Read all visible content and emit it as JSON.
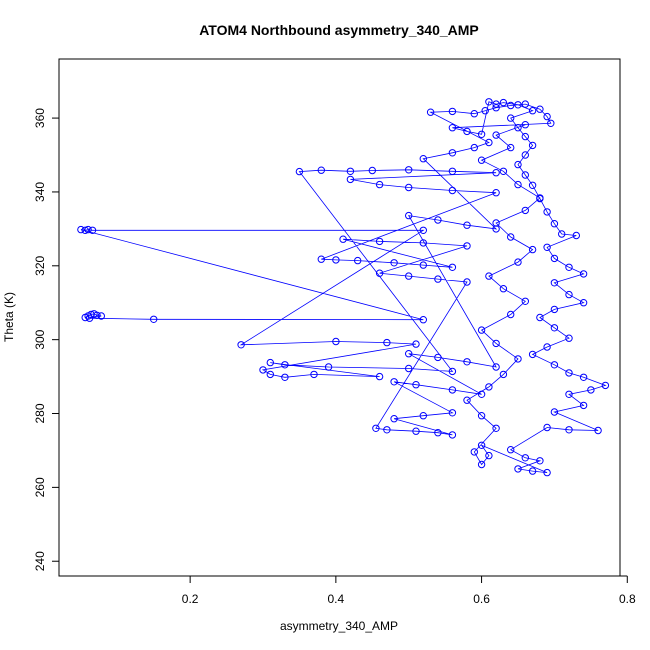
{
  "chart_data": {
    "type": "scatter",
    "title": "ATOM4 Northbound asymmetry_340_AMP",
    "xlabel": "asymmetry_340_AMP",
    "ylabel": "Theta (K)",
    "xlim": [
      0.02,
      0.79
    ],
    "ylim": [
      236,
      376
    ],
    "xticks": [
      0.2,
      0.4,
      0.6,
      0.8
    ],
    "yticks": [
      240,
      260,
      280,
      300,
      320,
      340,
      360
    ],
    "xtick_labels": [
      "0.2",
      "0.4",
      "0.6",
      "0.8"
    ],
    "ytick_labels": [
      "240",
      "260",
      "280",
      "300",
      "320",
      "340",
      "360"
    ],
    "color": "#0000ff",
    "marker": "open-circle",
    "connected": true,
    "series": [
      {
        "points": [
          [
            0.056,
            306.0
          ],
          [
            0.06,
            306.4
          ],
          [
            0.064,
            306.8
          ],
          [
            0.068,
            307.0
          ],
          [
            0.072,
            306.6
          ],
          [
            0.078,
            306.4
          ],
          [
            0.062,
            305.8
          ],
          [
            0.15,
            305.5
          ],
          [
            0.52,
            305.4
          ],
          [
            0.05,
            329.8
          ],
          [
            0.056,
            329.6
          ],
          [
            0.06,
            329.8
          ],
          [
            0.066,
            329.6
          ],
          [
            0.52,
            329.6
          ],
          [
            0.27,
            298.6
          ],
          [
            0.4,
            299.5
          ],
          [
            0.47,
            299.2
          ],
          [
            0.51,
            298.8
          ],
          [
            0.3,
            291.8
          ],
          [
            0.31,
            290.6
          ],
          [
            0.33,
            289.8
          ],
          [
            0.37,
            290.6
          ],
          [
            0.46,
            290.0
          ],
          [
            0.31,
            293.8
          ],
          [
            0.33,
            293.2
          ],
          [
            0.39,
            292.6
          ],
          [
            0.5,
            292.2
          ],
          [
            0.56,
            291.4
          ],
          [
            0.35,
            345.5
          ],
          [
            0.38,
            345.9
          ],
          [
            0.42,
            345.6
          ],
          [
            0.45,
            345.8
          ],
          [
            0.5,
            346.0
          ],
          [
            0.56,
            345.6
          ],
          [
            0.62,
            345.2
          ],
          [
            0.42,
            343.4
          ],
          [
            0.46,
            342.0
          ],
          [
            0.5,
            341.2
          ],
          [
            0.56,
            340.4
          ],
          [
            0.62,
            339.8
          ],
          [
            0.38,
            321.8
          ],
          [
            0.4,
            321.6
          ],
          [
            0.43,
            321.4
          ],
          [
            0.48,
            320.8
          ],
          [
            0.52,
            320.2
          ],
          [
            0.56,
            319.6
          ],
          [
            0.41,
            327.2
          ],
          [
            0.46,
            326.6
          ],
          [
            0.52,
            326.2
          ],
          [
            0.58,
            325.4
          ],
          [
            0.46,
            318.0
          ],
          [
            0.5,
            317.2
          ],
          [
            0.54,
            316.4
          ],
          [
            0.58,
            315.6
          ],
          [
            0.455,
            276.0
          ],
          [
            0.47,
            275.6
          ],
          [
            0.51,
            275.2
          ],
          [
            0.54,
            274.8
          ],
          [
            0.56,
            274.2
          ],
          [
            0.48,
            278.6
          ],
          [
            0.52,
            279.4
          ],
          [
            0.56,
            280.2
          ],
          [
            0.48,
            288.6
          ],
          [
            0.51,
            287.8
          ],
          [
            0.56,
            286.4
          ],
          [
            0.6,
            285.2
          ],
          [
            0.5,
            296.2
          ],
          [
            0.54,
            295.2
          ],
          [
            0.58,
            294.0
          ],
          [
            0.62,
            292.6
          ],
          [
            0.5,
            333.6
          ],
          [
            0.54,
            332.4
          ],
          [
            0.58,
            331.0
          ],
          [
            0.62,
            330.0
          ],
          [
            0.52,
            349.0
          ],
          [
            0.56,
            350.6
          ],
          [
            0.59,
            352.0
          ],
          [
            0.61,
            353.4
          ],
          [
            0.53,
            361.6
          ],
          [
            0.56,
            361.8
          ],
          [
            0.59,
            361.2
          ],
          [
            0.605,
            362.0
          ],
          [
            0.62,
            362.8
          ],
          [
            0.64,
            363.4
          ],
          [
            0.66,
            363.8
          ],
          [
            0.68,
            362.4
          ],
          [
            0.69,
            360.4
          ],
          [
            0.695,
            358.6
          ],
          [
            0.56,
            357.4
          ],
          [
            0.58,
            356.4
          ],
          [
            0.6,
            355.6
          ],
          [
            0.61,
            364.4
          ],
          [
            0.62,
            363.8
          ],
          [
            0.63,
            364.2
          ],
          [
            0.65,
            363.6
          ],
          [
            0.67,
            362.0
          ],
          [
            0.64,
            360.0
          ],
          [
            0.65,
            357.4
          ],
          [
            0.66,
            355.0
          ],
          [
            0.67,
            352.6
          ],
          [
            0.66,
            350.0
          ],
          [
            0.65,
            347.4
          ],
          [
            0.66,
            344.6
          ],
          [
            0.67,
            341.8
          ],
          [
            0.68,
            338.2
          ],
          [
            0.69,
            334.6
          ],
          [
            0.7,
            331.4
          ],
          [
            0.71,
            328.6
          ],
          [
            0.73,
            328.2
          ],
          [
            0.69,
            325.0
          ],
          [
            0.7,
            322.0
          ],
          [
            0.72,
            319.6
          ],
          [
            0.74,
            317.8
          ],
          [
            0.7,
            315.4
          ],
          [
            0.72,
            312.2
          ],
          [
            0.74,
            310.0
          ],
          [
            0.7,
            308.2
          ],
          [
            0.68,
            306.0
          ],
          [
            0.7,
            303.2
          ],
          [
            0.72,
            300.4
          ],
          [
            0.69,
            298.0
          ],
          [
            0.67,
            296.0
          ],
          [
            0.7,
            293.2
          ],
          [
            0.72,
            291.0
          ],
          [
            0.74,
            289.8
          ],
          [
            0.77,
            287.6
          ],
          [
            0.75,
            286.4
          ],
          [
            0.72,
            285.2
          ],
          [
            0.74,
            282.2
          ],
          [
            0.7,
            280.4
          ],
          [
            0.76,
            275.4
          ],
          [
            0.72,
            275.6
          ],
          [
            0.69,
            276.2
          ],
          [
            0.64,
            270.2
          ],
          [
            0.66,
            268.0
          ],
          [
            0.68,
            267.2
          ],
          [
            0.65,
            265.0
          ],
          [
            0.67,
            264.4
          ],
          [
            0.69,
            264.0
          ],
          [
            0.6,
            271.4
          ],
          [
            0.61,
            268.6
          ],
          [
            0.6,
            266.2
          ],
          [
            0.59,
            269.6
          ],
          [
            0.62,
            276.0
          ],
          [
            0.6,
            279.4
          ],
          [
            0.58,
            283.6
          ],
          [
            0.61,
            287.2
          ],
          [
            0.63,
            290.6
          ],
          [
            0.65,
            294.8
          ],
          [
            0.62,
            299.0
          ],
          [
            0.6,
            302.6
          ],
          [
            0.64,
            306.8
          ],
          [
            0.66,
            310.4
          ],
          [
            0.63,
            313.8
          ],
          [
            0.61,
            317.2
          ],
          [
            0.65,
            321.0
          ],
          [
            0.67,
            324.4
          ],
          [
            0.64,
            327.8
          ],
          [
            0.62,
            331.6
          ],
          [
            0.66,
            335.0
          ],
          [
            0.68,
            338.4
          ],
          [
            0.65,
            342.0
          ],
          [
            0.63,
            345.6
          ],
          [
            0.6,
            348.6
          ],
          [
            0.64,
            352.0
          ],
          [
            0.62,
            355.4
          ],
          [
            0.66,
            358.2
          ]
        ]
      }
    ]
  }
}
